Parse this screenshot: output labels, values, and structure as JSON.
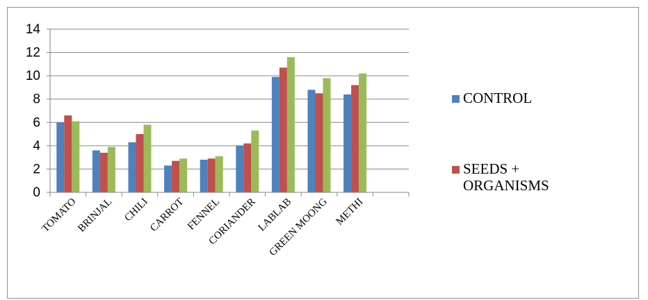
{
  "chart_data": {
    "type": "bar",
    "categories": [
      "TOMATO",
      "BRINJAL",
      "CHILI",
      "CARROT",
      "FENNEL",
      "CORIANDER",
      "LABLAB",
      "GREEN MOONG",
      "METHI"
    ],
    "series": [
      {
        "name": "CONTROL",
        "values": [
          6.0,
          3.6,
          4.3,
          2.3,
          2.8,
          4.0,
          9.9,
          8.8,
          8.4
        ],
        "color": "#4f81bd"
      },
      {
        "name": "SEEDS + ORGANISMS",
        "values": [
          6.6,
          3.4,
          5.0,
          2.7,
          2.9,
          4.2,
          10.7,
          8.5,
          9.2
        ],
        "color": "#c0504d"
      },
      {
        "name": "",
        "values": [
          6.1,
          3.9,
          5.8,
          2.9,
          3.1,
          5.3,
          11.6,
          9.8,
          10.2
        ],
        "color": "#9bbb59"
      }
    ],
    "legend_position": "right",
    "ylim": [
      0,
      14
    ],
    "yticks": [
      "0",
      "2",
      "4",
      "6",
      "8",
      "10",
      "12",
      "14"
    ],
    "grid": true,
    "title": "",
    "xlabel": "",
    "ylabel": ""
  }
}
